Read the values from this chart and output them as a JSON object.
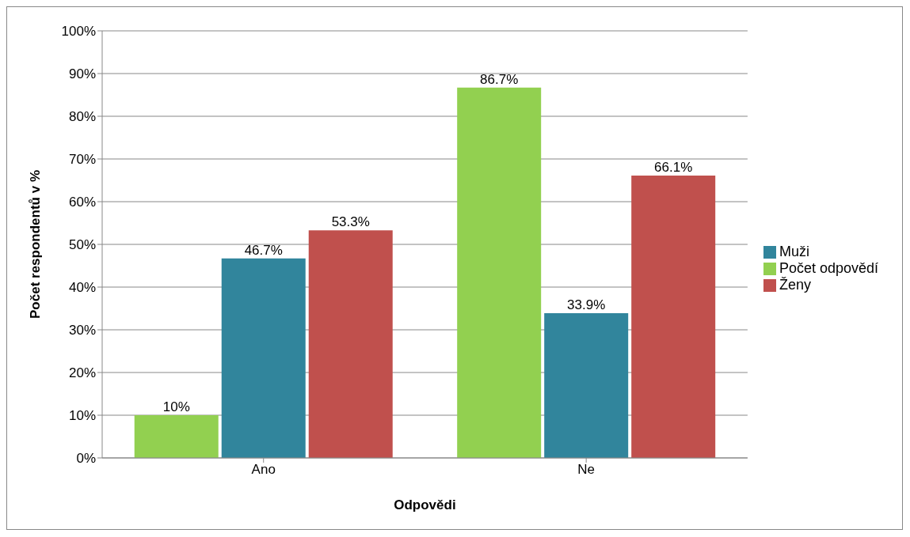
{
  "chart_data": {
    "type": "bar",
    "xlabel": "Odpovědi",
    "ylabel": "Počet respondentů v %",
    "categories": [
      "Ano",
      "Ne"
    ],
    "series": [
      {
        "name": "Počet odpovědí",
        "color": "#92d050",
        "values": [
          10,
          86.7
        ],
        "value_labels": [
          "10%",
          "86.7%"
        ]
      },
      {
        "name": "Muži",
        "color": "#31859c",
        "values": [
          46.7,
          33.9
        ],
        "value_labels": [
          "46.7%",
          "33.9%"
        ]
      },
      {
        "name": "Ženy",
        "color": "#c0504d",
        "values": [
          53.3,
          66.1
        ],
        "value_labels": [
          "53.3%",
          "66.1%"
        ]
      }
    ],
    "ylim": [
      0,
      100
    ],
    "yticks": [
      {
        "value": 0,
        "label": "0%"
      },
      {
        "value": 10,
        "label": "10%"
      },
      {
        "value": 20,
        "label": "20%"
      },
      {
        "value": 30,
        "label": "30%"
      },
      {
        "value": 40,
        "label": "40%"
      },
      {
        "value": 50,
        "label": "50%"
      },
      {
        "value": 60,
        "label": "60%"
      },
      {
        "value": 70,
        "label": "70%"
      },
      {
        "value": 80,
        "label": "80%"
      },
      {
        "value": 90,
        "label": "90%"
      },
      {
        "value": 100,
        "label": "100%"
      }
    ],
    "grid": "y",
    "legend": "right"
  }
}
